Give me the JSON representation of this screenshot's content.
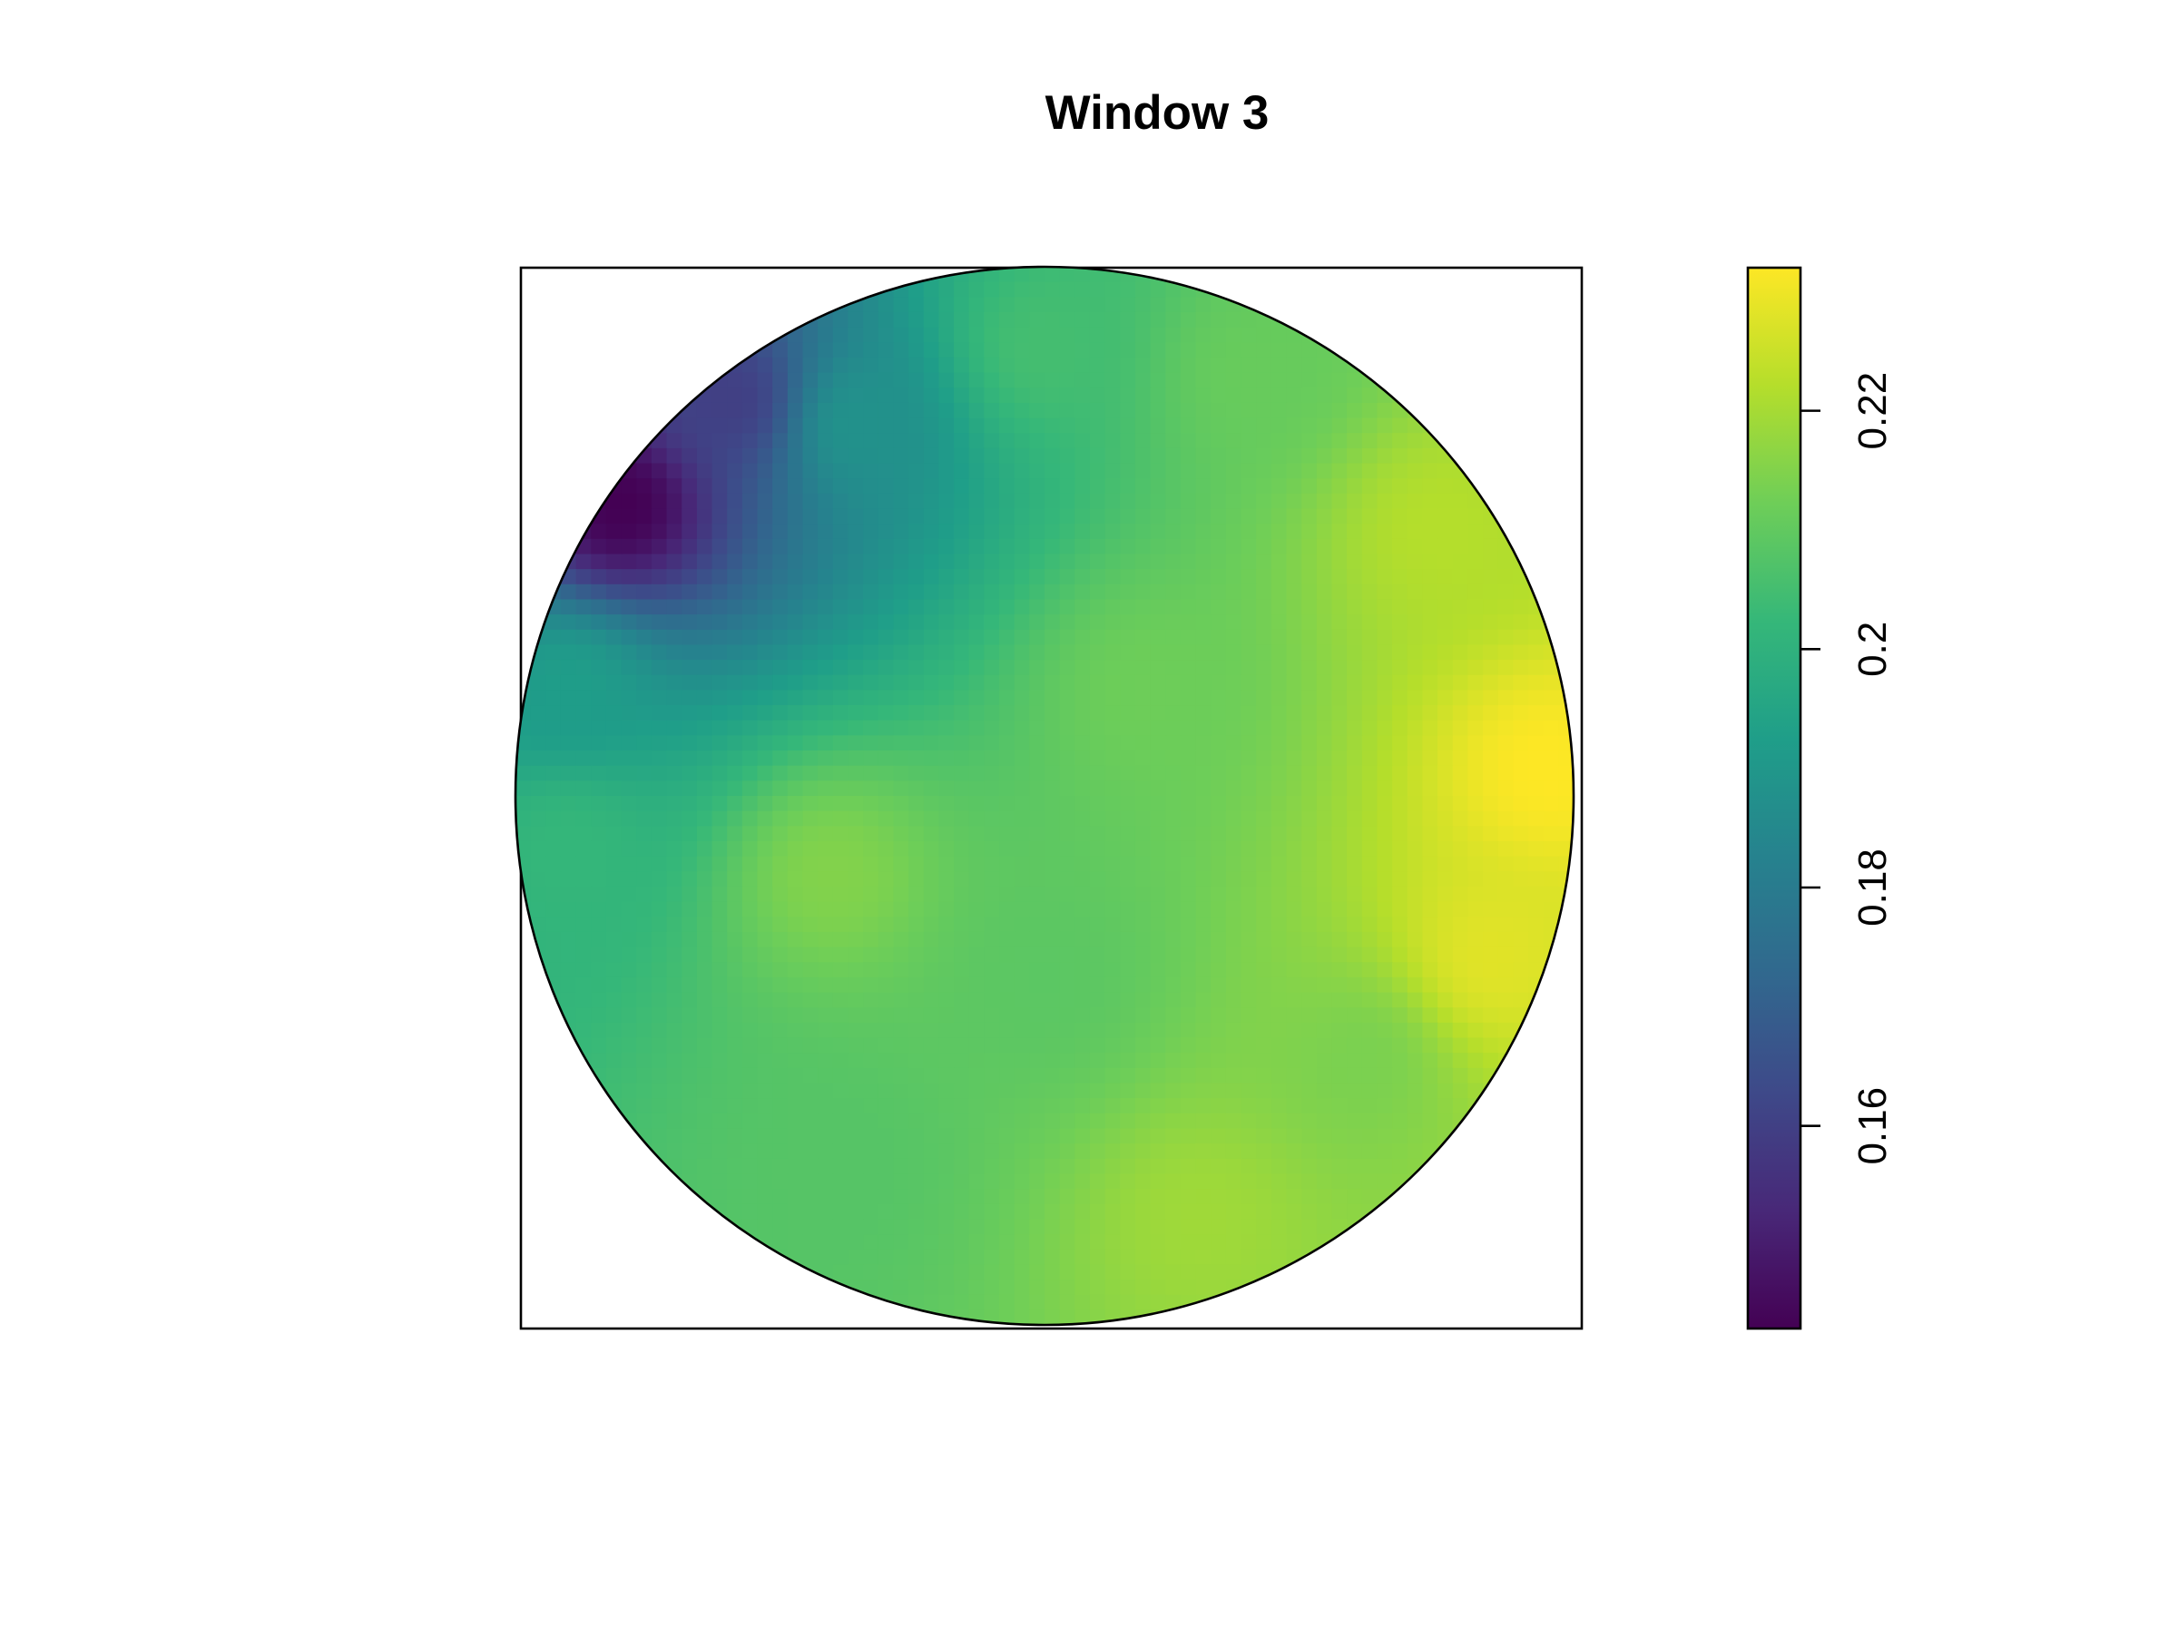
{
  "chart_data": {
    "type": "heatmap",
    "title": "Window 3",
    "xlabel": "",
    "ylabel": "",
    "region": "disc",
    "axes_drawn": false,
    "colormap": "viridis",
    "color_range": [
      0.143,
      0.232
    ],
    "colorbar": {
      "position": "right",
      "ticks": [
        0.16,
        0.18,
        0.2,
        0.22
      ],
      "tick_labels": [
        "0.16",
        "0.18",
        "0.2",
        "0.22"
      ]
    },
    "grid": false,
    "field_samples": [
      {
        "x": -0.8,
        "y": 0.55,
        "value": 0.143
      },
      {
        "x": -0.6,
        "y": 0.75,
        "value": 0.16
      },
      {
        "x": -0.35,
        "y": 0.7,
        "value": 0.188
      },
      {
        "x": -0.9,
        "y": 0.2,
        "value": 0.192
      },
      {
        "x": -0.9,
        "y": -0.1,
        "value": 0.202
      },
      {
        "x": 0.0,
        "y": 0.85,
        "value": 0.205
      },
      {
        "x": 0.4,
        "y": 0.8,
        "value": 0.211
      },
      {
        "x": -0.4,
        "y": -0.15,
        "value": 0.215
      },
      {
        "x": 0.0,
        "y": -0.35,
        "value": 0.209
      },
      {
        "x": -0.4,
        "y": -0.7,
        "value": 0.208
      },
      {
        "x": 0.3,
        "y": -0.8,
        "value": 0.219
      },
      {
        "x": 0.6,
        "y": -0.5,
        "value": 0.214
      },
      {
        "x": 0.2,
        "y": 0.2,
        "value": 0.212
      },
      {
        "x": 0.75,
        "y": 0.5,
        "value": 0.222
      },
      {
        "x": 0.95,
        "y": 0.05,
        "value": 0.232
      },
      {
        "x": 0.85,
        "y": -0.3,
        "value": 0.228
      }
    ]
  },
  "colors": {
    "outline": "#000000",
    "background": "#ffffff",
    "viridis_stops": [
      "#440154",
      "#482878",
      "#3e4989",
      "#31688e",
      "#26828e",
      "#1f9e89",
      "#35b779",
      "#6ece58",
      "#b5de2b",
      "#fde725"
    ]
  }
}
